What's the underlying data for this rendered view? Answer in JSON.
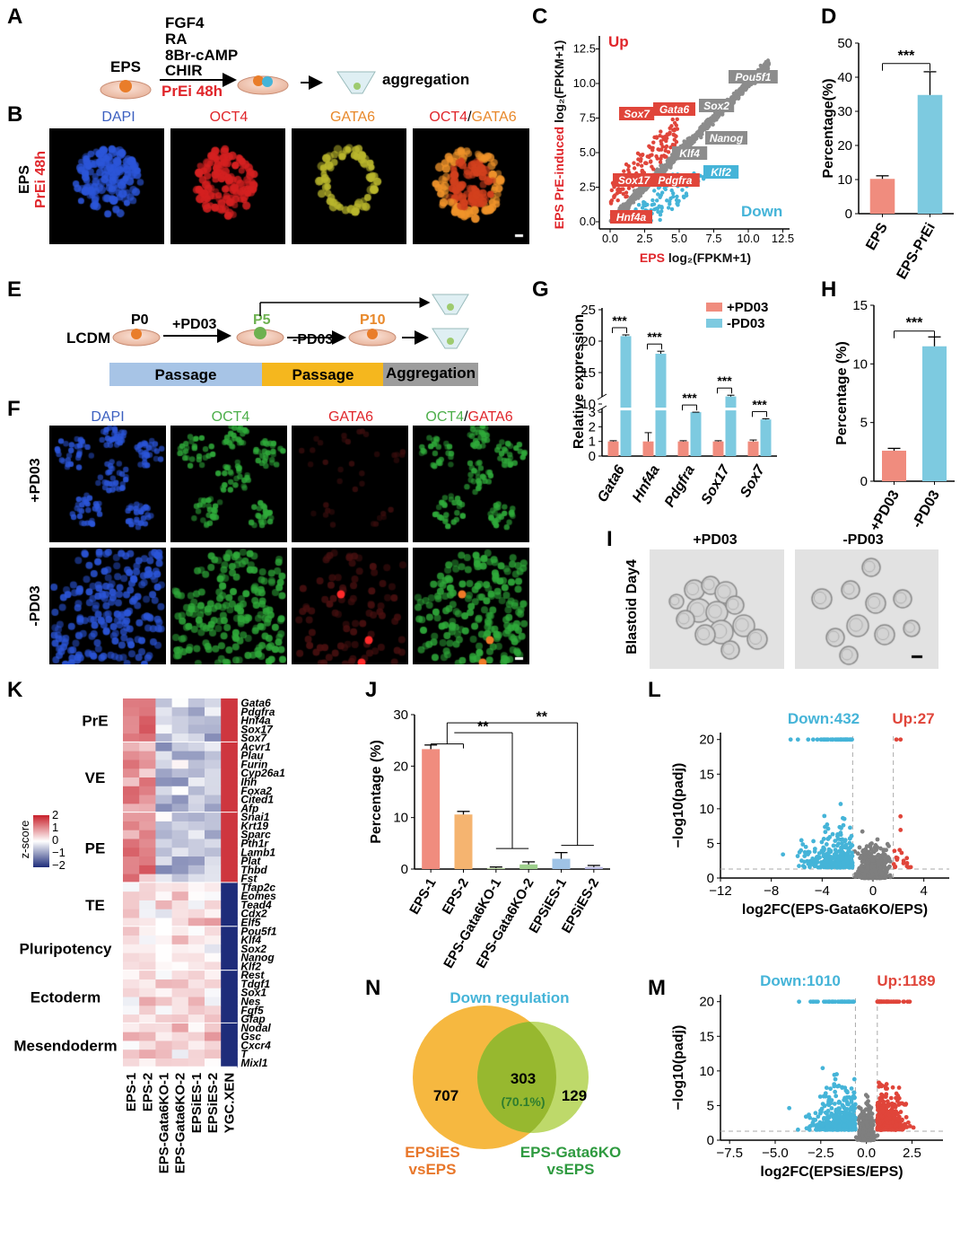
{
  "panel_letters": [
    "A",
    "B",
    "C",
    "D",
    "E",
    "F",
    "G",
    "H",
    "I",
    "J",
    "K",
    "L",
    "M",
    "N"
  ],
  "panelA": {
    "start": "EPS",
    "treatments": [
      "FGF4",
      "RA",
      "8Br-cAMP",
      "CHIR"
    ],
    "arrow_label": "PrEi 48h",
    "end": "aggregation"
  },
  "panelB": {
    "row_label_1": "EPS",
    "row_label_2": "PrEi 48h",
    "channels": [
      "DAPI",
      "OCT4",
      "GATA6"
    ],
    "merge_a": "OCT4",
    "merge_sep": "/",
    "merge_b": "GATA6"
  },
  "panelC": {
    "up_label": "Up",
    "down_label": "Down",
    "ylabel_red": "EPS PrE-induced",
    "ylabel_black": "log₂(FPKM+1)",
    "xlabel_red": "EPS",
    "xlabel_black": "log₂(FPKM+1)",
    "ticks": [
      "0.0",
      "2.5",
      "5.0",
      "7.5",
      "10.0",
      "12.5"
    ],
    "genes_red": [
      "Sox7",
      "Gata6",
      "Sox17",
      "Pdgfra",
      "Hnf4a"
    ],
    "genes_gray": [
      "Pou5f1",
      "Sox2",
      "Nanog",
      "Klf4"
    ],
    "genes_blue": [
      "Klf2"
    ]
  },
  "panelE": {
    "start": "LCDM",
    "p0": "P0",
    "step1": "+PD03",
    "p5": "P5",
    "step2": "-PD03",
    "p10": "P10",
    "bars": [
      "Passage",
      "Passage",
      "Aggregation"
    ]
  },
  "panelF": {
    "channels": [
      "DAPI",
      "OCT4",
      "GATA6"
    ],
    "merge_a": "OCT4",
    "merge_sep": "/",
    "merge_b": "GATA6",
    "rows": [
      "+PD03",
      "-PD03"
    ]
  },
  "panelI": {
    "side_label": "Blastoid Day4",
    "cols": [
      "+PD03",
      "-PD03"
    ]
  },
  "panelK": {
    "colorbar_title": "z-score",
    "colorbar_ticks": [
      "2",
      "1",
      "0",
      "−1",
      "−2"
    ],
    "groups": [
      {
        "name": "PrE",
        "genes": [
          "Gata6",
          "Pdgfra",
          "Hnf4a",
          "Sox17",
          "Sox7"
        ]
      },
      {
        "name": "VE",
        "genes": [
          "Acvr1",
          "Plau",
          "Furin",
          "Cyp26a1",
          "Ihh",
          "Foxa2",
          "Cited1",
          "Afp"
        ]
      },
      {
        "name": "PE",
        "genes": [
          "Snai1",
          "Krt19",
          "Sparc",
          "Pth1r",
          "Lamb1",
          "Plat",
          "Thbd",
          "Fst"
        ]
      },
      {
        "name": "TE",
        "genes": [
          "Tfap2c",
          "Eomes",
          "Tead4",
          "Cdx2",
          "Elf5"
        ]
      },
      {
        "name": "Pluripotency",
        "genes": [
          "Pou5f1",
          "Klf4",
          "Sox2",
          "Nanog",
          "Klf2"
        ]
      },
      {
        "name": "Ectoderm",
        "genes": [
          "Rest",
          "Tdgf1",
          "Sox1",
          "Nes",
          "Fgf5",
          "Gfap"
        ]
      },
      {
        "name": "Mesendoderm",
        "genes": [
          "Nodal",
          "Gsc",
          "Cxcr4",
          "T",
          "Mixl1"
        ]
      }
    ],
    "columns": [
      "EPS-1",
      "EPS-2",
      "EPS-Gata6KO-1",
      "EPS-Gata6KO-2",
      "EPSiES-1",
      "EPSiES-2",
      "YGC.XEN"
    ]
  },
  "panelN": {
    "title": "Down regulation",
    "left_count": "707",
    "overlap_count": "303",
    "overlap_pct": "(70.1%)",
    "right_count": "129",
    "left_label_1": "EPSiES",
    "left_label_2": "vsEPS",
    "right_label_1": "EPS-Gata6KO",
    "right_label_2": "vsEPS"
  },
  "chart_data": [
    {
      "id": "D",
      "type": "bar",
      "categories": [
        "EPS",
        "EPS-PrEi"
      ],
      "values": [
        10.2,
        34.8
      ],
      "errors": [
        0.9,
        6.8
      ],
      "ylabel": "Percentage(%)",
      "ylim": [
        0,
        50
      ],
      "yticks": [
        "0",
        "10",
        "20",
        "30",
        "40",
        "50"
      ],
      "significance": "***",
      "colors": [
        "#F08C7E",
        "#7DCAE0"
      ]
    },
    {
      "id": "G",
      "type": "bar",
      "categories": [
        "Gata6",
        "Hnf4a",
        "Pdgfra",
        "Sox17",
        "Sox7"
      ],
      "series": [
        {
          "name": "+PD03",
          "values": [
            1.0,
            1.0,
            1.0,
            1.0,
            1.0
          ],
          "errors": [
            0.05,
            0.6,
            0.05,
            0.05,
            0.1
          ],
          "color": "#F08C7E"
        },
        {
          "name": "-PD03",
          "values": [
            20.8,
            18.0,
            8.0,
            11.2,
            2.5
          ],
          "errors": [
            0.2,
            0.4,
            0.3,
            0.2,
            0.05
          ],
          "color": "#7DCAE0"
        }
      ],
      "ylabel": "Relative  expression",
      "lower_ticks": [
        "0",
        "1",
        "2",
        "3"
      ],
      "upper_ticks": [
        "10",
        "15",
        "20",
        "25"
      ],
      "significance": [
        "***",
        "***",
        "***",
        "***",
        "***"
      ]
    },
    {
      "id": "H",
      "type": "bar",
      "categories": [
        "+PD03",
        "-PD03"
      ],
      "values": [
        2.6,
        11.5
      ],
      "errors": [
        0.2,
        0.8
      ],
      "ylabel": "Percentage (%)",
      "ylim": [
        0,
        15
      ],
      "yticks": [
        "0",
        "5",
        "10",
        "15"
      ],
      "significance": "***",
      "colors": [
        "#F08C7E",
        "#7DCAE0"
      ]
    },
    {
      "id": "J",
      "type": "bar",
      "categories": [
        "EPS-1",
        "EPS-2",
        "EPS-Gata6KO-1",
        "EPS-Gata6KO-2",
        "EPSiES-1",
        "EPSiES-2"
      ],
      "values": [
        23.3,
        10.6,
        0.2,
        0.9,
        2.0,
        0.4
      ],
      "errors": [
        0.8,
        0.6,
        0.2,
        0.5,
        1.2,
        0.3
      ],
      "ylabel": "Percentage  (%)",
      "ylim": [
        0,
        30
      ],
      "yticks": [
        "0",
        "10",
        "20",
        "30"
      ],
      "significance": [
        "**",
        "**"
      ],
      "colors": [
        "#F08C7E",
        "#F5B470",
        "#B5D49B",
        "#9ED08C",
        "#9FC3E6",
        "#B8B8E0"
      ]
    },
    {
      "id": "L",
      "type": "scatter",
      "title_down": "Down:432",
      "title_up": "Up:27",
      "xlabel": "log2FC(EPS-Gata6KO/EPS)",
      "ylabel": "−log10(padj)",
      "xticks": [
        "−12",
        "−8",
        "−4",
        "0",
        "4"
      ],
      "yticks": [
        "0",
        "5",
        "10",
        "15",
        "20"
      ],
      "xlim": [
        -12,
        6
      ],
      "ylim": [
        0,
        21
      ]
    },
    {
      "id": "M",
      "type": "scatter",
      "title_down": "Down:1010",
      "title_up": "Up:1189",
      "xlabel": "log2FC(EPSiES/EPS)",
      "ylabel": "−log10(padj)",
      "xticks": [
        "−7.5",
        "−5.0",
        "−2.5",
        "0.0",
        "2.5"
      ],
      "yticks": [
        "0",
        "5",
        "10",
        "15",
        "20"
      ],
      "xlim": [
        -8,
        4.2
      ],
      "ylim": [
        0,
        21
      ]
    }
  ]
}
